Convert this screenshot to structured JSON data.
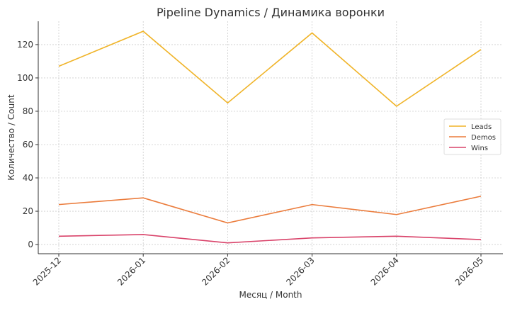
{
  "chart_data": {
    "type": "line",
    "title": "Pipeline Dynamics / Динамика воронки",
    "xlabel": "Месяц / Month",
    "ylabel": "Количество / Count",
    "categories": [
      "2025-12",
      "2026-01",
      "2026-02",
      "2026-03",
      "2026-04",
      "2026-05"
    ],
    "ylim": [
      -5.5,
      134
    ],
    "yticks": [
      0,
      20,
      40,
      60,
      80,
      100,
      120
    ],
    "grid": true,
    "legend_position": "center-right",
    "series": [
      {
        "name": "Leads",
        "color": "#f0b429",
        "values": [
          107,
          128,
          85,
          127,
          83,
          117
        ]
      },
      {
        "name": "Demos",
        "color": "#eb7c3c",
        "values": [
          24,
          28,
          13,
          24,
          18,
          29
        ]
      },
      {
        "name": "Wins",
        "color": "#d9436a",
        "values": [
          5,
          6,
          1,
          4,
          5,
          3
        ]
      }
    ]
  }
}
